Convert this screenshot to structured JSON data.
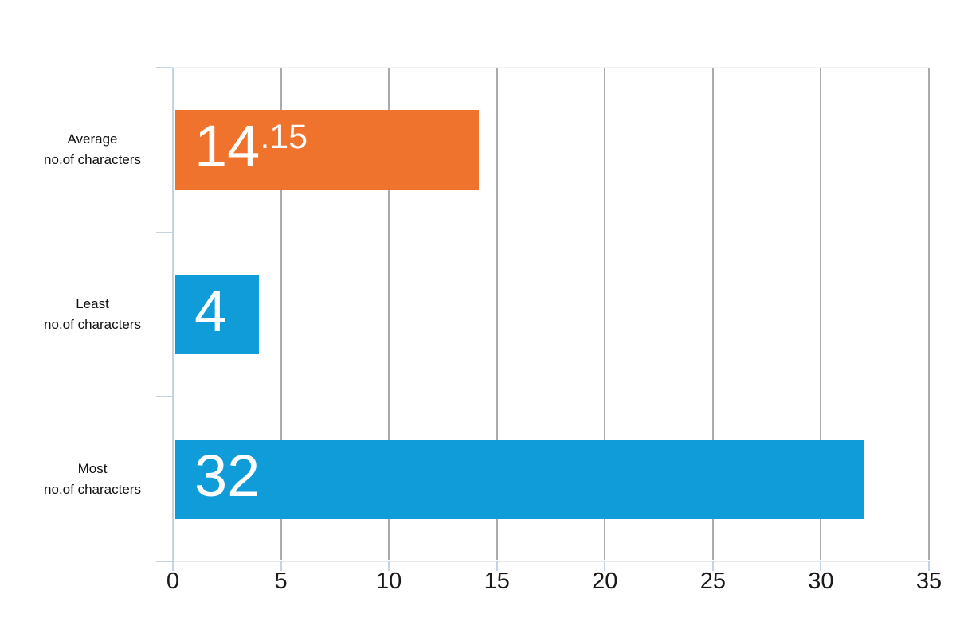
{
  "chart_data": {
    "type": "bar",
    "orientation": "horizontal",
    "title": "",
    "xlabel": "",
    "ylabel": "",
    "categories": [
      "Average no.of characters",
      "Least no.of characters",
      "Most no.of characters"
    ],
    "categories_display": [
      {
        "line1": "Average",
        "line2": "no.of characters"
      },
      {
        "line1": "Least",
        "line2": "no.of characters"
      },
      {
        "line1": "Most",
        "line2": "no.of characters"
      }
    ],
    "values": [
      14.15,
      4,
      32
    ],
    "value_labels": [
      {
        "main": "14",
        "dec": ".15"
      },
      {
        "main": "4",
        "dec": ""
      },
      {
        "main": "32",
        "dec": ""
      }
    ],
    "bar_colors": [
      "#F0732D",
      "#109BD9",
      "#109BD9"
    ],
    "x_ticks": [
      0,
      5,
      10,
      15,
      20,
      25,
      30,
      35
    ],
    "xlim": [
      0,
      35
    ],
    "grid": true,
    "legend": "none"
  },
  "colors": {
    "background": "#FFFFFF",
    "orange": "#F0732D",
    "blue": "#109BD9",
    "axis_blue": "#C2D3E3",
    "gridline": "#ABABAB",
    "axis_line": "#E6EAEF",
    "plot_top_border": "#F0F2F5",
    "tick_label": "#1A1A1A",
    "category_label": "#111111",
    "value_label": "#FFFFFF"
  }
}
